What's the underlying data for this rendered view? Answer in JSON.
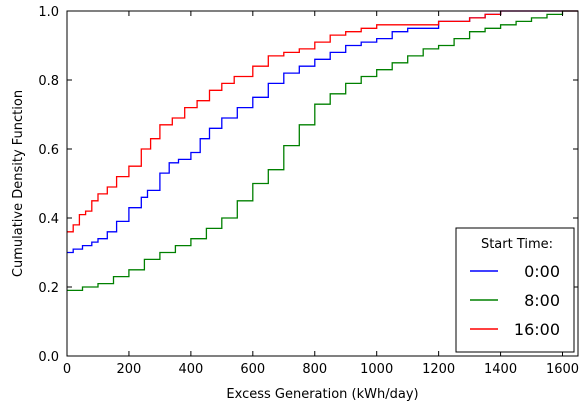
{
  "chart_data": {
    "type": "line",
    "title": "",
    "xlabel": "Excess Generation (kWh/day)",
    "ylabel": "Cumulative Density Function",
    "xlim": [
      0,
      1650
    ],
    "ylim": [
      0.0,
      1.0
    ],
    "xticks": [
      0,
      200,
      400,
      600,
      800,
      1000,
      1200,
      1400,
      1600
    ],
    "yticks": [
      0.0,
      0.2,
      0.4,
      0.6,
      0.8,
      1.0
    ],
    "xtick_labels": [
      "0",
      "200",
      "400",
      "600",
      "800",
      "1000",
      "1200",
      "1400",
      "1600"
    ],
    "ytick_labels": [
      "0.0",
      "0.2",
      "0.4",
      "0.6",
      "0.8",
      "1.0"
    ],
    "grid": false,
    "legend": {
      "title": "Start Time:",
      "placement": "lower-right"
    },
    "series": [
      {
        "name": "0:00",
        "color": "#0000ff",
        "points": [
          [
            0,
            0.3
          ],
          [
            20,
            0.31
          ],
          [
            50,
            0.32
          ],
          [
            80,
            0.33
          ],
          [
            100,
            0.34
          ],
          [
            130,
            0.36
          ],
          [
            160,
            0.39
          ],
          [
            200,
            0.43
          ],
          [
            240,
            0.46
          ],
          [
            260,
            0.48
          ],
          [
            300,
            0.53
          ],
          [
            330,
            0.56
          ],
          [
            360,
            0.57
          ],
          [
            400,
            0.59
          ],
          [
            430,
            0.63
          ],
          [
            460,
            0.66
          ],
          [
            500,
            0.69
          ],
          [
            550,
            0.72
          ],
          [
            600,
            0.75
          ],
          [
            650,
            0.79
          ],
          [
            700,
            0.82
          ],
          [
            750,
            0.84
          ],
          [
            800,
            0.86
          ],
          [
            850,
            0.88
          ],
          [
            900,
            0.9
          ],
          [
            950,
            0.91
          ],
          [
            1000,
            0.92
          ],
          [
            1050,
            0.94
          ],
          [
            1100,
            0.95
          ],
          [
            1150,
            0.95
          ],
          [
            1200,
            0.97
          ],
          [
            1250,
            0.97
          ],
          [
            1300,
            0.98
          ],
          [
            1350,
            0.99
          ],
          [
            1400,
            1.0
          ]
        ]
      },
      {
        "name": "8:00",
        "color": "#008000",
        "points": [
          [
            0,
            0.19
          ],
          [
            50,
            0.2
          ],
          [
            100,
            0.21
          ],
          [
            150,
            0.23
          ],
          [
            200,
            0.25
          ],
          [
            250,
            0.28
          ],
          [
            300,
            0.3
          ],
          [
            350,
            0.32
          ],
          [
            400,
            0.34
          ],
          [
            450,
            0.37
          ],
          [
            500,
            0.4
          ],
          [
            550,
            0.45
          ],
          [
            600,
            0.5
          ],
          [
            650,
            0.54
          ],
          [
            700,
            0.61
          ],
          [
            750,
            0.67
          ],
          [
            800,
            0.73
          ],
          [
            850,
            0.76
          ],
          [
            900,
            0.79
          ],
          [
            950,
            0.81
          ],
          [
            1000,
            0.83
          ],
          [
            1050,
            0.85
          ],
          [
            1100,
            0.87
          ],
          [
            1150,
            0.89
          ],
          [
            1200,
            0.9
          ],
          [
            1250,
            0.92
          ],
          [
            1300,
            0.94
          ],
          [
            1350,
            0.95
          ],
          [
            1400,
            0.96
          ],
          [
            1450,
            0.97
          ],
          [
            1500,
            0.98
          ],
          [
            1550,
            0.99
          ],
          [
            1600,
            1.0
          ]
        ]
      },
      {
        "name": "16:00",
        "color": "#ff0000",
        "points": [
          [
            0,
            0.36
          ],
          [
            20,
            0.38
          ],
          [
            40,
            0.41
          ],
          [
            60,
            0.42
          ],
          [
            80,
            0.45
          ],
          [
            100,
            0.47
          ],
          [
            130,
            0.49
          ],
          [
            160,
            0.52
          ],
          [
            200,
            0.55
          ],
          [
            240,
            0.6
          ],
          [
            270,
            0.63
          ],
          [
            300,
            0.67
          ],
          [
            340,
            0.69
          ],
          [
            380,
            0.72
          ],
          [
            420,
            0.74
          ],
          [
            460,
            0.77
          ],
          [
            500,
            0.79
          ],
          [
            540,
            0.81
          ],
          [
            600,
            0.84
          ],
          [
            650,
            0.87
          ],
          [
            700,
            0.88
          ],
          [
            750,
            0.89
          ],
          [
            800,
            0.91
          ],
          [
            850,
            0.93
          ],
          [
            900,
            0.94
          ],
          [
            950,
            0.95
          ],
          [
            1000,
            0.96
          ],
          [
            1100,
            0.96
          ],
          [
            1200,
            0.97
          ],
          [
            1250,
            0.97
          ],
          [
            1300,
            0.98
          ],
          [
            1350,
            0.99
          ],
          [
            1400,
            1.0
          ]
        ]
      }
    ]
  }
}
